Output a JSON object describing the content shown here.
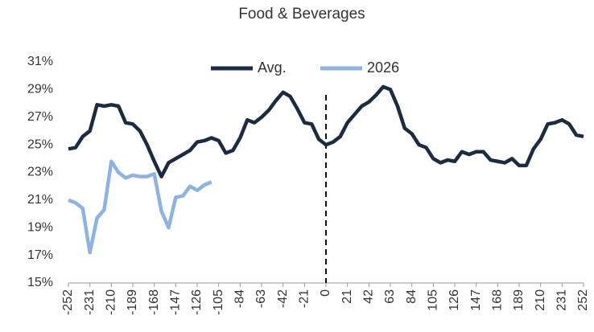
{
  "chart_data": {
    "type": "line",
    "title": "Food & Beverages",
    "x": [
      -252,
      -245,
      -238,
      -231,
      -224,
      -217,
      -210,
      -203,
      -196,
      -189,
      -182,
      -175,
      -168,
      -161,
      -154,
      -147,
      -140,
      -133,
      -126,
      -119,
      -112,
      -105,
      -98,
      -91,
      -84,
      -77,
      -70,
      -63,
      -56,
      -49,
      -42,
      -35,
      -28,
      -21,
      -14,
      -7,
      0,
      7,
      14,
      21,
      28,
      35,
      42,
      49,
      56,
      63,
      70,
      77,
      84,
      91,
      98,
      105,
      112,
      119,
      126,
      133,
      140,
      147,
      154,
      161,
      168,
      175,
      182,
      189,
      196,
      203,
      210,
      217,
      224,
      231,
      238,
      245,
      252
    ],
    "series": [
      {
        "name": "Avg.",
        "color": "#1c2b3f",
        "values": [
          24.7,
          24.8,
          25.6,
          26.0,
          27.9,
          27.8,
          27.9,
          27.8,
          26.6,
          26.5,
          26.0,
          25.0,
          23.8,
          22.7,
          23.7,
          24.0,
          24.3,
          24.6,
          25.2,
          25.3,
          25.5,
          25.3,
          24.4,
          24.6,
          25.5,
          26.8,
          26.6,
          27.0,
          27.5,
          28.2,
          28.8,
          28.5,
          27.6,
          26.6,
          26.5,
          25.4,
          25.0,
          25.2,
          25.6,
          26.6,
          27.2,
          27.8,
          28.1,
          28.6,
          29.2,
          29.0,
          27.8,
          26.2,
          25.8,
          25.0,
          24.8,
          24.0,
          23.7,
          23.9,
          23.8,
          24.5,
          24.3,
          24.5,
          24.5,
          23.9,
          23.8,
          23.7,
          24.0,
          23.5,
          23.5,
          24.7,
          25.4,
          26.5,
          26.6,
          26.8,
          26.5,
          25.7,
          25.6
        ]
      },
      {
        "name": "2026",
        "color": "#8fb3e0",
        "values": [
          21.0,
          20.8,
          20.4,
          17.2,
          19.7,
          20.3,
          23.8,
          23.0,
          22.6,
          22.8,
          22.7,
          22.7,
          22.9,
          20.2,
          19.0,
          21.2,
          21.3,
          22.0,
          21.7,
          22.1,
          22.3,
          null,
          null,
          null,
          null,
          null,
          null,
          null,
          null,
          null,
          null,
          null,
          null,
          null,
          null,
          null,
          null,
          null,
          null,
          null,
          null,
          null,
          null,
          null,
          null,
          null,
          null,
          null,
          null,
          null,
          null,
          null,
          null,
          null,
          null,
          null,
          null,
          null,
          null,
          null,
          null,
          null,
          null,
          null,
          null,
          null,
          null,
          null,
          null,
          null,
          null,
          null,
          null
        ]
      }
    ],
    "xlim": [
      -252,
      252
    ],
    "xticks": [
      -252,
      -231,
      -210,
      -189,
      -168,
      -147,
      -126,
      -105,
      -84,
      -63,
      -42,
      -21,
      0,
      21,
      42,
      63,
      84,
      105,
      126,
      147,
      168,
      189,
      210,
      231,
      252
    ],
    "ylim": [
      15,
      31
    ],
    "yticks": [
      {
        "value": 15,
        "label": "15%"
      },
      {
        "value": 17,
        "label": "17%"
      },
      {
        "value": 19,
        "label": "19%"
      },
      {
        "value": 21,
        "label": "21%"
      },
      {
        "value": 23,
        "label": "23%"
      },
      {
        "value": 25,
        "label": "25%"
      },
      {
        "value": 27,
        "label": "27%"
      },
      {
        "value": 29,
        "label": "29%"
      },
      {
        "value": 31,
        "label": "31%"
      }
    ],
    "vline": 0,
    "grid": false,
    "legend": "top"
  }
}
